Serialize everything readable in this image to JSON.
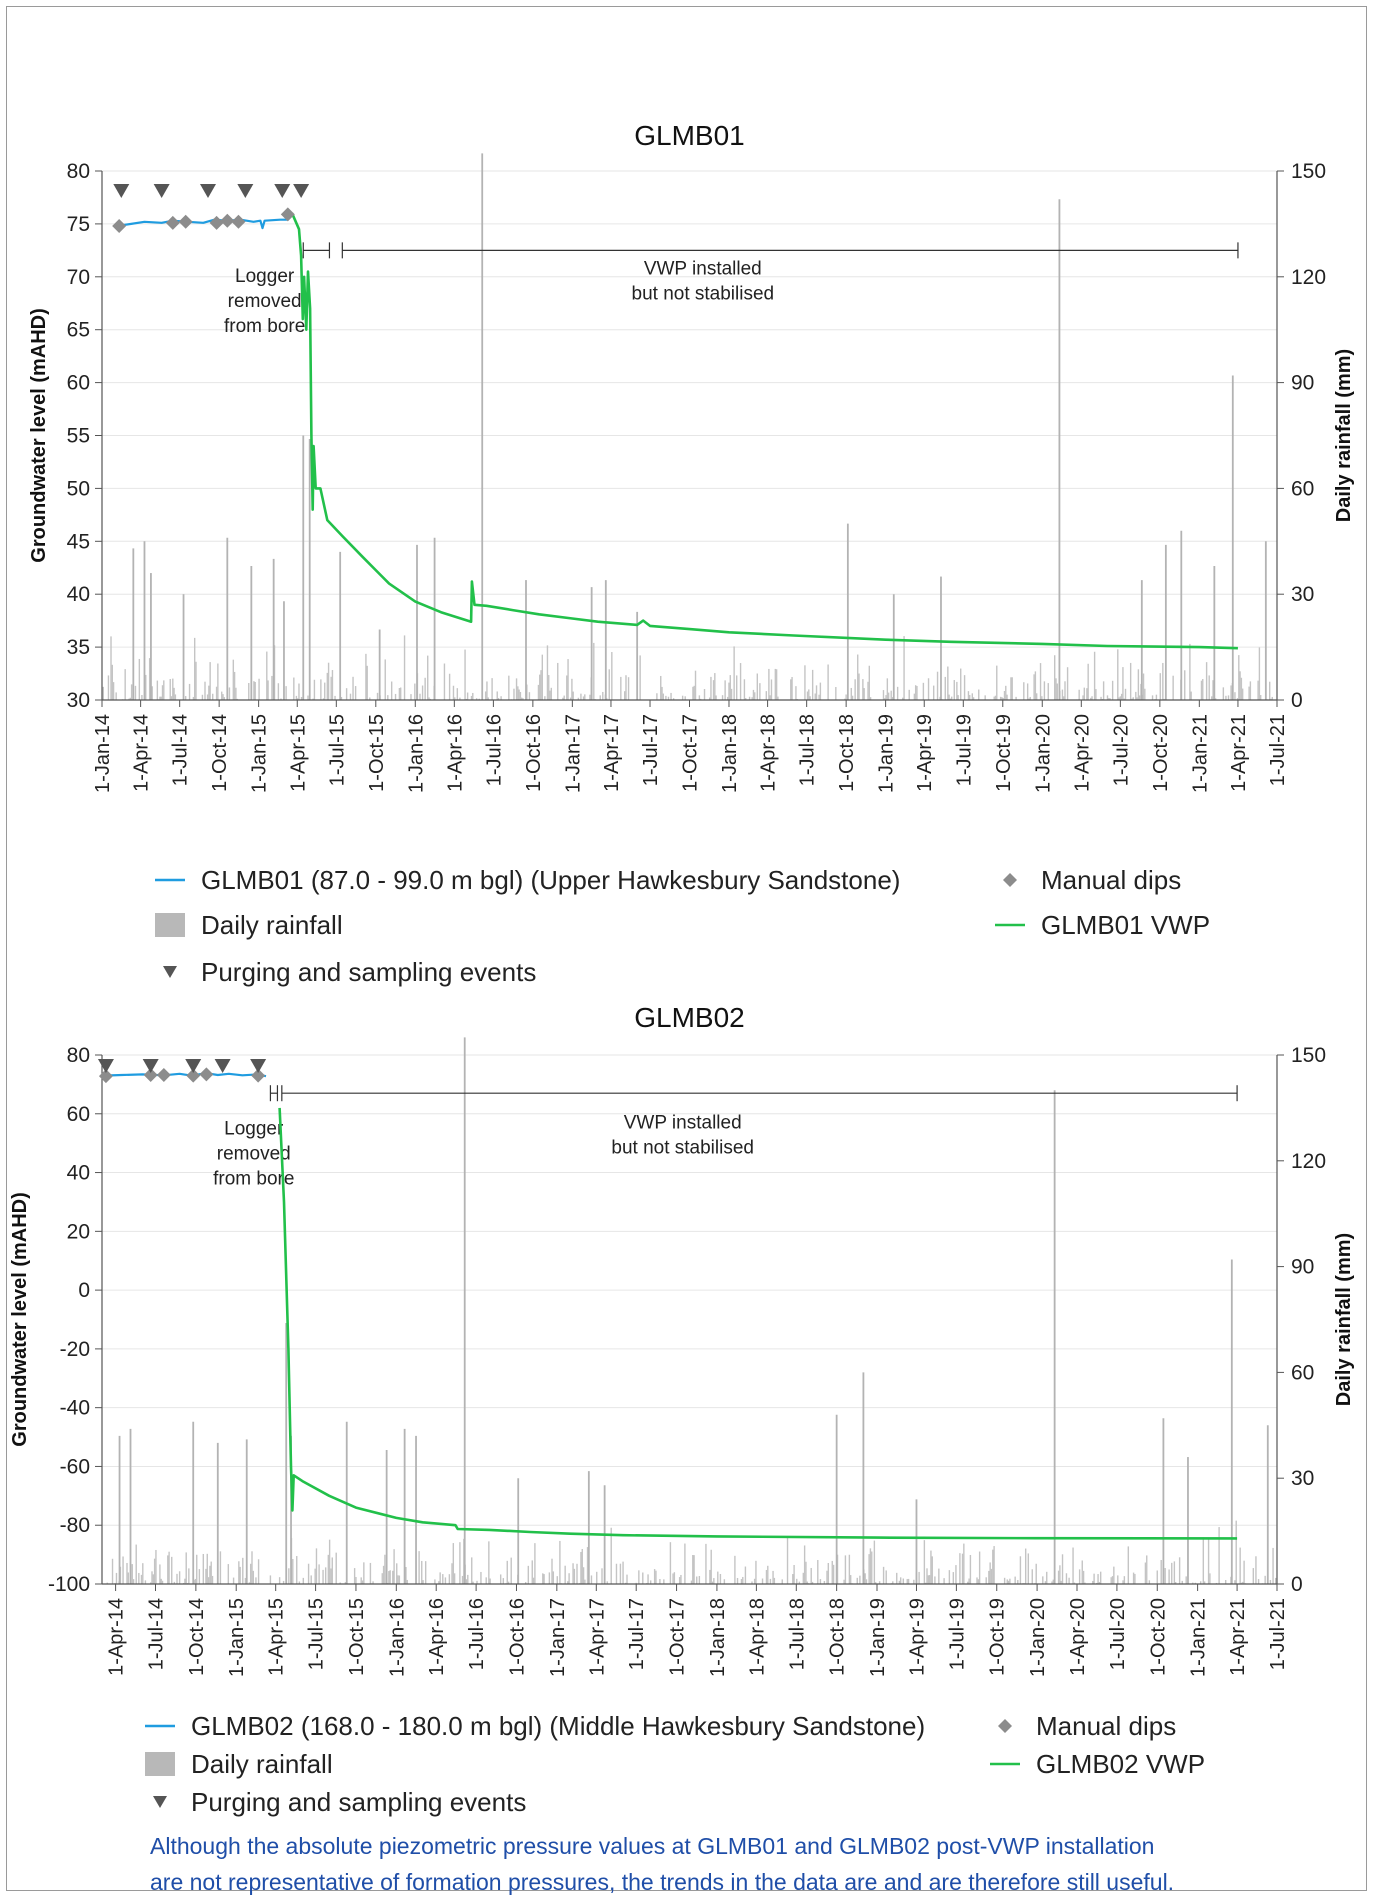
{
  "footnote": {
    "line1": "Although the absolute piezometric pressure values at GLMB01 and GLMB02 post-VWP installation",
    "line2": "are not representative of formation pressures, the trends in the data are and are therefore still useful."
  },
  "chart_data": [
    {
      "type": "line",
      "title": "GLMB01",
      "ylabel": "Groundwater level (mAHD)",
      "y2label": "Daily rainfall (mm)",
      "ylim": [
        30,
        80
      ],
      "yticks": [
        30,
        35,
        40,
        45,
        50,
        55,
        60,
        65,
        70,
        75,
        80
      ],
      "y2lim": [
        0,
        150
      ],
      "y2ticks": [
        0,
        30,
        60,
        90,
        120,
        150
      ],
      "xlim": [
        "2014-01-01",
        "2021-07-01"
      ],
      "xticks": [
        "1-Jan-14",
        "1-Apr-14",
        "1-Jul-14",
        "1-Oct-14",
        "1-Jan-15",
        "1-Apr-15",
        "1-Jul-15",
        "1-Oct-15",
        "1-Jan-16",
        "1-Apr-16",
        "1-Jul-16",
        "1-Oct-16",
        "1-Jan-17",
        "1-Apr-17",
        "1-Jul-17",
        "1-Oct-17",
        "1-Jan-18",
        "1-Apr-18",
        "1-Jul-18",
        "1-Oct-18",
        "1-Jan-19",
        "1-Apr-19",
        "1-Jul-19",
        "1-Oct-19",
        "1-Jan-20",
        "1-Apr-20",
        "1-Jul-20",
        "1-Oct-20",
        "1-Jan-21",
        "1-Apr-21",
        "1-Jul-21"
      ],
      "legend": [
        {
          "label": "GLMB01 (87.0 - 99.0 m bgl) (Upper Hawkesbury Sandstone)",
          "kind": "line",
          "color": "#1f9ce0"
        },
        {
          "label": "Manual dips",
          "kind": "diamond",
          "color": "#8c8c8c"
        },
        {
          "label": "Daily rainfall",
          "kind": "bar",
          "color": "#b8b8b8"
        },
        {
          "label": "GLMB01 VWP",
          "kind": "line",
          "color": "#22c04a"
        },
        {
          "label": "Purging and sampling events",
          "kind": "triangle",
          "color": "#555555"
        }
      ],
      "annotations": [
        {
          "text": [
            "Logger",
            "removed",
            "from bore"
          ],
          "x": "2015-01-15",
          "y": 69.5
        },
        {
          "text": [
            "VWP installed",
            "but not stabilised"
          ],
          "x": "2017-11-01",
          "y": 70.2
        }
      ],
      "brackets": [
        {
          "x1": "2015-04-15",
          "x2": "2015-06-15",
          "y": 72.5
        },
        {
          "x1": "2015-07-15",
          "x2": "2021-04-01",
          "y": 72.5
        }
      ],
      "series": [
        {
          "name": "GLMB01 (87.0 - 99.0 m bgl) (Upper Hawkesbury Sandstone)",
          "color": "#1f9ce0",
          "width": 2.2,
          "points": [
            [
              "2014-02-20",
              74.9
            ],
            [
              "2014-03-10",
              75.0
            ],
            [
              "2014-04-10",
              75.2
            ],
            [
              "2014-05-20",
              75.1
            ],
            [
              "2014-06-15",
              75.3
            ],
            [
              "2014-07-20",
              75.2
            ],
            [
              "2014-08-25",
              75.1
            ],
            [
              "2014-09-20",
              75.4
            ],
            [
              "2014-10-20",
              75.3
            ],
            [
              "2014-11-20",
              75.4
            ],
            [
              "2014-12-20",
              75.2
            ],
            [
              "2015-01-05",
              75.3
            ],
            [
              "2015-01-10",
              74.6
            ],
            [
              "2015-01-15",
              75.3
            ],
            [
              "2015-02-20",
              75.4
            ],
            [
              "2015-03-10",
              75.4
            ],
            [
              "2015-03-12",
              75.8
            ]
          ]
        },
        {
          "name": "GLMB01 VWP",
          "color": "#22c04a",
          "width": 2.6,
          "points": [
            [
              "2015-03-20",
              76.0
            ],
            [
              "2015-04-05",
              74.5
            ],
            [
              "2015-04-10",
              72.0
            ],
            [
              "2015-04-14",
              66.0
            ],
            [
              "2015-04-17",
              70.0
            ],
            [
              "2015-04-22",
              65.0
            ],
            [
              "2015-04-26",
              70.5
            ],
            [
              "2015-05-01",
              67.0
            ],
            [
              "2015-05-04",
              55.0
            ],
            [
              "2015-05-07",
              48.0
            ],
            [
              "2015-05-09",
              54.0
            ],
            [
              "2015-05-14",
              50.0
            ],
            [
              "2015-05-25",
              50.0
            ],
            [
              "2015-06-10",
              47.0
            ],
            [
              "2015-07-15",
              45.5
            ],
            [
              "2015-09-01",
              43.5
            ],
            [
              "2015-11-01",
              41.0
            ],
            [
              "2016-01-01",
              39.3
            ],
            [
              "2016-03-01",
              38.3
            ],
            [
              "2016-05-10",
              37.4
            ],
            [
              "2016-05-12",
              41.2
            ],
            [
              "2016-05-18",
              39.0
            ],
            [
              "2016-06-15",
              38.9
            ],
            [
              "2016-08-15",
              38.5
            ],
            [
              "2016-10-15",
              38.1
            ],
            [
              "2017-01-01",
              37.7
            ],
            [
              "2017-03-01",
              37.4
            ],
            [
              "2017-06-01",
              37.1
            ],
            [
              "2017-06-15",
              37.5
            ],
            [
              "2017-07-01",
              37.0
            ],
            [
              "2017-10-01",
              36.7
            ],
            [
              "2018-01-01",
              36.4
            ],
            [
              "2018-06-01",
              36.1
            ],
            [
              "2019-01-01",
              35.7
            ],
            [
              "2019-06-01",
              35.5
            ],
            [
              "2020-01-01",
              35.3
            ],
            [
              "2020-06-01",
              35.1
            ],
            [
              "2021-01-01",
              35.0
            ],
            [
              "2021-04-01",
              34.9
            ]
          ]
        }
      ],
      "manual_dips": [
        [
          "2014-02-10",
          74.8
        ],
        [
          "2014-06-15",
          75.1
        ],
        [
          "2014-07-15",
          75.2
        ],
        [
          "2014-09-25",
          75.1
        ],
        [
          "2014-10-20",
          75.3
        ],
        [
          "2014-11-15",
          75.2
        ],
        [
          "2015-03-10",
          75.9
        ]
      ],
      "sampling_events": [
        "2014-02-15",
        "2014-05-20",
        "2014-09-05",
        "2014-12-01",
        "2015-02-25",
        "2015-04-10"
      ],
      "rainfall_peaks": [
        [
          "2014-03-15",
          43
        ],
        [
          "2014-04-10",
          45
        ],
        [
          "2014-04-25",
          36
        ],
        [
          "2014-07-10",
          30
        ],
        [
          "2014-10-20",
          46
        ],
        [
          "2014-12-15",
          38
        ],
        [
          "2015-02-05",
          40
        ],
        [
          "2015-03-01",
          28
        ],
        [
          "2015-04-15",
          75
        ],
        [
          "2015-04-30",
          74
        ],
        [
          "2015-07-10",
          42
        ],
        [
          "2015-10-10",
          20
        ],
        [
          "2016-01-05",
          44
        ],
        [
          "2016-02-15",
          46
        ],
        [
          "2016-06-05",
          155
        ],
        [
          "2016-09-15",
          34
        ],
        [
          "2017-02-15",
          32
        ],
        [
          "2017-03-20",
          34
        ],
        [
          "2017-06-01",
          25
        ],
        [
          "2018-10-05",
          50
        ],
        [
          "2019-01-20",
          30
        ],
        [
          "2019-05-10",
          35
        ],
        [
          "2020-02-10",
          142
        ],
        [
          "2020-08-20",
          34
        ],
        [
          "2020-10-15",
          44
        ],
        [
          "2020-11-20",
          48
        ],
        [
          "2021-02-05",
          38
        ],
        [
          "2021-03-20",
          92
        ],
        [
          "2021-06-05",
          45
        ]
      ]
    },
    {
      "type": "line",
      "title": "GLMB02",
      "ylabel": "Groundwater level (mAHD)",
      "y2label": "Daily rainfall (mm)",
      "ylim": [
        -100,
        80
      ],
      "yticks": [
        -100,
        -80,
        -60,
        -40,
        -20,
        0,
        20,
        40,
        60,
        80
      ],
      "y2lim": [
        0,
        150
      ],
      "y2ticks": [
        0,
        30,
        60,
        90,
        120,
        150
      ],
      "xlim": [
        "2014-03-01",
        "2021-07-01"
      ],
      "xticks": [
        "1-Apr-14",
        "1-Jul-14",
        "1-Oct-14",
        "1-Jan-15",
        "1-Apr-15",
        "1-Jul-15",
        "1-Oct-15",
        "1-Jan-16",
        "1-Apr-16",
        "1-Jul-16",
        "1-Oct-16",
        "1-Jan-17",
        "1-Apr-17",
        "1-Jul-17",
        "1-Oct-17",
        "1-Jan-18",
        "1-Apr-18",
        "1-Jul-18",
        "1-Oct-18",
        "1-Jan-19",
        "1-Apr-19",
        "1-Jul-19",
        "1-Oct-19",
        "1-Jan-20",
        "1-Apr-20",
        "1-Jul-20",
        "1-Oct-20",
        "1-Jan-21",
        "1-Apr-21",
        "1-Jul-21"
      ],
      "legend": [
        {
          "label": "GLMB02 (168.0 - 180.0 m bgl) (Middle Hawkesbury Sandstone)",
          "kind": "line",
          "color": "#1f9ce0"
        },
        {
          "label": "Manual dips",
          "kind": "diamond",
          "color": "#8c8c8c"
        },
        {
          "label": "Daily rainfall",
          "kind": "bar",
          "color": "#b8b8b8"
        },
        {
          "label": "GLMB02 VWP",
          "kind": "line",
          "color": "#22c04a"
        },
        {
          "label": "Purging and sampling events",
          "kind": "triangle",
          "color": "#555555"
        }
      ],
      "annotations": [
        {
          "text": [
            "Logger",
            "removed",
            "from bore"
          ],
          "x": "2015-02-10",
          "y": 53
        },
        {
          "text": [
            "VWP installed",
            "but not stabilised"
          ],
          "x": "2017-10-15",
          "y": 55
        }
      ],
      "brackets": [
        {
          "x1": "2015-03-20",
          "x2": "2015-04-05",
          "y": 67
        },
        {
          "x1": "2015-04-15",
          "x2": "2021-04-01",
          "y": 67
        }
      ],
      "series": [
        {
          "name": "GLMB02 (168.0 - 180.0 m bgl) (Middle Hawkesbury Sandstone)",
          "color": "#1f9ce0",
          "width": 2.2,
          "points": [
            [
              "2014-03-05",
              73.0
            ],
            [
              "2014-04-15",
              73.2
            ],
            [
              "2014-06-01",
              73.4
            ],
            [
              "2014-07-20",
              73.1
            ],
            [
              "2014-08-25",
              73.6
            ],
            [
              "2014-09-20",
              73.0
            ],
            [
              "2014-10-25",
              73.8
            ],
            [
              "2014-11-20",
              73.2
            ],
            [
              "2014-12-15",
              73.6
            ],
            [
              "2015-01-15",
              73.1
            ],
            [
              "2015-02-20",
              73.4
            ],
            [
              "2015-03-10",
              72.8
            ]
          ]
        },
        {
          "name": "GLMB02 VWP",
          "color": "#22c04a",
          "width": 2.6,
          "points": [
            [
              "2015-04-10",
              62.0
            ],
            [
              "2015-04-20",
              30.0
            ],
            [
              "2015-04-30",
              -20.0
            ],
            [
              "2015-05-06",
              -60.0
            ],
            [
              "2015-05-09",
              -75.0
            ],
            [
              "2015-05-12",
              -63.0
            ],
            [
              "2015-06-01",
              -65.0
            ],
            [
              "2015-08-01",
              -70.0
            ],
            [
              "2015-10-01",
              -74.0
            ],
            [
              "2016-01-01",
              -77.5
            ],
            [
              "2016-03-01",
              -79.0
            ],
            [
              "2016-05-15",
              -80.0
            ],
            [
              "2016-05-20",
              -81.3
            ],
            [
              "2016-08-01",
              -81.6
            ],
            [
              "2016-11-01",
              -82.3
            ],
            [
              "2017-02-01",
              -82.9
            ],
            [
              "2017-06-01",
              -83.4
            ],
            [
              "2018-01-01",
              -83.8
            ],
            [
              "2019-01-01",
              -84.2
            ],
            [
              "2020-01-01",
              -84.4
            ],
            [
              "2021-04-01",
              -84.5
            ]
          ]
        }
      ],
      "manual_dips": [
        [
          "2014-03-10",
          72.8
        ],
        [
          "2014-06-20",
          73.2
        ],
        [
          "2014-07-20",
          73.2
        ],
        [
          "2014-09-25",
          73.0
        ],
        [
          "2014-10-25",
          73.4
        ],
        [
          "2015-02-20",
          73.0
        ]
      ],
      "sampling_events": [
        "2014-03-10",
        "2014-06-20",
        "2014-09-25",
        "2014-12-01",
        "2015-02-20"
      ],
      "rainfall_peaks": [
        [
          "2014-04-10",
          42
        ],
        [
          "2014-05-05",
          44
        ],
        [
          "2014-09-25",
          46
        ],
        [
          "2014-11-20",
          40
        ],
        [
          "2015-01-25",
          41
        ],
        [
          "2015-04-25",
          74
        ],
        [
          "2015-05-06",
          42
        ],
        [
          "2015-09-10",
          46
        ],
        [
          "2015-12-10",
          38
        ],
        [
          "2016-01-20",
          44
        ],
        [
          "2016-02-15",
          42
        ],
        [
          "2016-06-05",
          155
        ],
        [
          "2016-10-05",
          30
        ],
        [
          "2017-03-15",
          32
        ],
        [
          "2017-04-20",
          28
        ],
        [
          "2018-10-01",
          48
        ],
        [
          "2018-12-01",
          60
        ],
        [
          "2019-04-01",
          24
        ],
        [
          "2020-02-10",
          140
        ],
        [
          "2020-10-15",
          47
        ],
        [
          "2020-12-10",
          36
        ],
        [
          "2021-03-20",
          92
        ],
        [
          "2021-06-10",
          45
        ]
      ]
    }
  ]
}
